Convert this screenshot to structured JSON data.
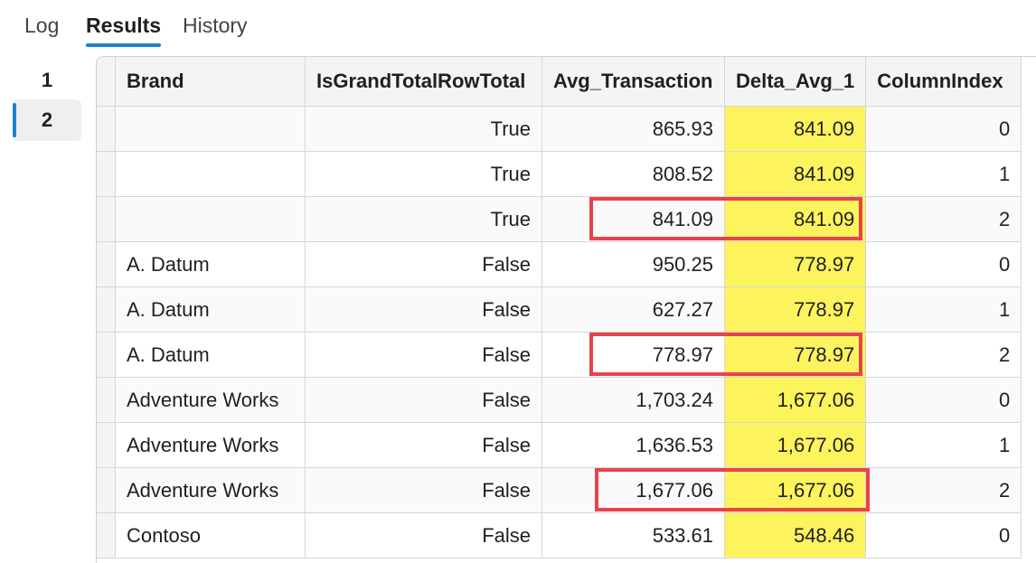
{
  "tabs": [
    {
      "label": "Log",
      "active": false
    },
    {
      "label": "Results",
      "active": true
    },
    {
      "label": "History",
      "active": false
    }
  ],
  "result_sets": [
    {
      "label": "1",
      "selected": false
    },
    {
      "label": "2",
      "selected": true
    }
  ],
  "grid": {
    "columns": [
      "Brand",
      "IsGrandTotalRowTotal",
      "Avg_Transaction",
      "Delta_Avg_1",
      "ColumnIndex"
    ],
    "highlight_color": "#fdf35c",
    "annotation_color": "#e8434b",
    "rows": [
      [
        "",
        "True",
        "865.93",
        "841.09",
        "0"
      ],
      [
        "",
        "True",
        "808.52",
        "841.09",
        "1"
      ],
      [
        "",
        "True",
        "841.09",
        "841.09",
        "2"
      ],
      [
        "A. Datum",
        "False",
        "950.25",
        "778.97",
        "0"
      ],
      [
        "A. Datum",
        "False",
        "627.27",
        "778.97",
        "1"
      ],
      [
        "A. Datum",
        "False",
        "778.97",
        "778.97",
        "2"
      ],
      [
        "Adventure Works",
        "False",
        "1,703.24",
        "1,677.06",
        "0"
      ],
      [
        "Adventure Works",
        "False",
        "1,636.53",
        "1,677.06",
        "1"
      ],
      [
        "Adventure Works",
        "False",
        "1,677.06",
        "1,677.06",
        "2"
      ],
      [
        "Contoso",
        "False",
        "533.61",
        "548.46",
        "0"
      ]
    ]
  }
}
